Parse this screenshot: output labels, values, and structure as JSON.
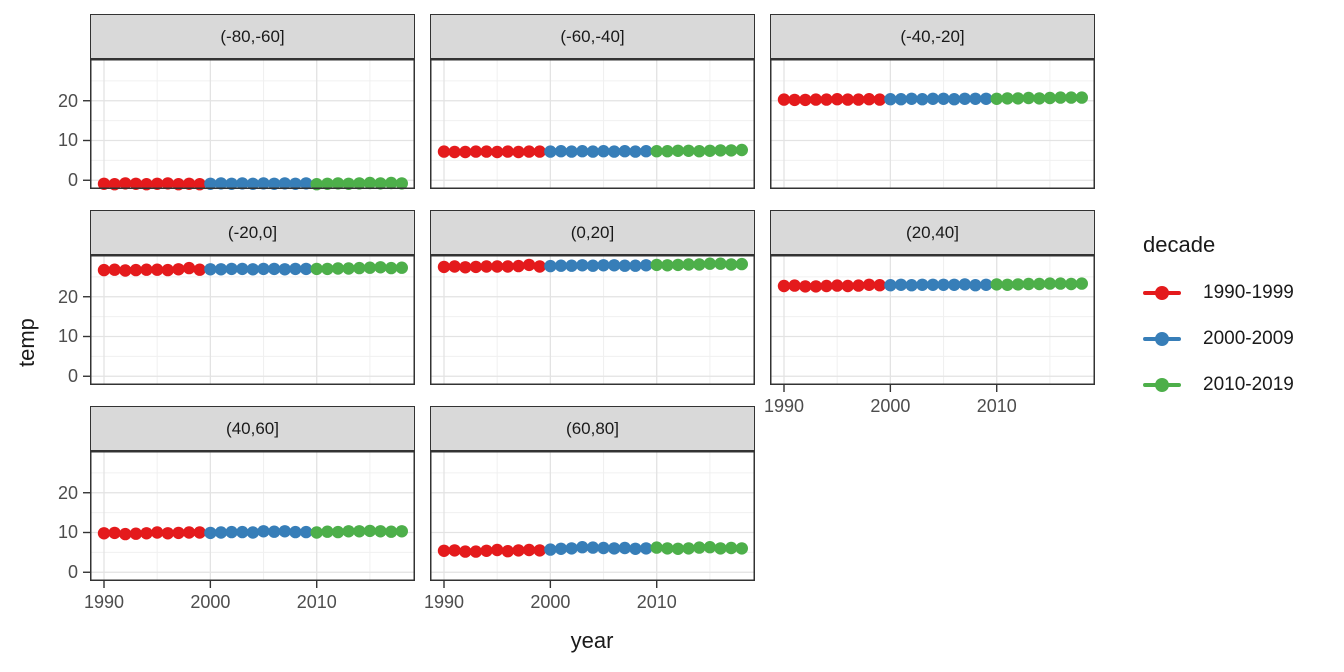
{
  "figure": {
    "xlabel": "year",
    "ylabel": "temp"
  },
  "legend": {
    "title": "decade",
    "entries": [
      {
        "label": "1990-1999",
        "color": "#E41A1C"
      },
      {
        "label": "2000-2009",
        "color": "#377EB8"
      },
      {
        "label": "2010-2019",
        "color": "#4DAF4A"
      }
    ]
  },
  "chart_data": {
    "type": "scatter",
    "title": "",
    "xlabel": "year",
    "ylabel": "temp",
    "facet_variable": "latitude band",
    "series_variable": "decade",
    "legend_position": "right",
    "grid": true,
    "x": [
      1990,
      1991,
      1992,
      1993,
      1994,
      1995,
      1996,
      1997,
      1998,
      1999,
      2000,
      2001,
      2002,
      2003,
      2004,
      2005,
      2006,
      2007,
      2008,
      2009,
      2010,
      2011,
      2012,
      2013,
      2014,
      2015,
      2016,
      2017,
      2018
    ],
    "x_ticks": [
      1990,
      2000,
      2010
    ],
    "y_ticks": [
      0,
      10,
      20
    ],
    "x_minor_ticks": [
      1995,
      2005,
      2015
    ],
    "y_minor_ticks": [
      5,
      15,
      25
    ],
    "xlim": [
      1988.7,
      2019.2
    ],
    "ylim": [
      -2.2,
      30.5
    ],
    "decades": [
      {
        "name": "1990-1999",
        "from": 1990,
        "to": 1999,
        "color": "#E41A1C"
      },
      {
        "name": "2000-2009",
        "from": 2000,
        "to": 2009,
        "color": "#377EB8"
      },
      {
        "name": "2010-2019",
        "from": 2010,
        "to": 2019,
        "color": "#4DAF4A"
      }
    ],
    "facets": [
      {
        "label": "(-80,-60]",
        "values": [
          -0.9,
          -1.0,
          -0.8,
          -0.9,
          -1.0,
          -0.9,
          -0.8,
          -1.0,
          -0.9,
          -1.0,
          -0.9,
          -0.8,
          -0.9,
          -0.8,
          -0.9,
          -0.8,
          -0.9,
          -0.8,
          -0.9,
          -0.8,
          -1.0,
          -0.9,
          -0.8,
          -0.9,
          -0.8,
          -0.7,
          -0.8,
          -0.7,
          -0.8
        ]
      },
      {
        "label": "(-60,-40]",
        "values": [
          7.2,
          7.1,
          7.1,
          7.2,
          7.2,
          7.1,
          7.2,
          7.1,
          7.2,
          7.2,
          7.2,
          7.3,
          7.2,
          7.3,
          7.2,
          7.3,
          7.2,
          7.3,
          7.2,
          7.3,
          7.3,
          7.3,
          7.4,
          7.4,
          7.3,
          7.4,
          7.5,
          7.5,
          7.6
        ]
      },
      {
        "label": "(-40,-20]",
        "values": [
          20.3,
          20.2,
          20.2,
          20.3,
          20.3,
          20.4,
          20.3,
          20.3,
          20.4,
          20.3,
          20.4,
          20.4,
          20.5,
          20.4,
          20.5,
          20.5,
          20.4,
          20.5,
          20.5,
          20.5,
          20.5,
          20.6,
          20.6,
          20.7,
          20.6,
          20.7,
          20.8,
          20.8,
          20.8
        ]
      },
      {
        "label": "(-20,0]",
        "values": [
          26.7,
          26.8,
          26.6,
          26.7,
          26.8,
          26.8,
          26.7,
          26.9,
          27.2,
          26.8,
          26.9,
          26.9,
          27.0,
          27.0,
          26.9,
          27.0,
          27.0,
          26.9,
          27.0,
          27.0,
          27.0,
          27.0,
          27.1,
          27.1,
          27.2,
          27.3,
          27.4,
          27.2,
          27.3
        ]
      },
      {
        "label": "(0,20]",
        "values": [
          27.5,
          27.6,
          27.4,
          27.5,
          27.6,
          27.6,
          27.6,
          27.7,
          28.0,
          27.6,
          27.7,
          27.8,
          27.8,
          27.9,
          27.8,
          27.9,
          27.9,
          27.8,
          27.8,
          27.9,
          28.0,
          27.9,
          28.0,
          28.1,
          28.1,
          28.3,
          28.3,
          28.1,
          28.2
        ]
      },
      {
        "label": "(20,40]",
        "values": [
          22.7,
          22.8,
          22.6,
          22.6,
          22.7,
          22.8,
          22.7,
          22.8,
          23.0,
          22.9,
          22.9,
          23.0,
          22.9,
          23.0,
          23.0,
          23.0,
          23.0,
          23.1,
          22.9,
          23.0,
          23.1,
          23.0,
          23.1,
          23.2,
          23.2,
          23.3,
          23.3,
          23.2,
          23.3
        ]
      },
      {
        "label": "(40,60]",
        "values": [
          9.8,
          9.9,
          9.6,
          9.7,
          9.8,
          10.0,
          9.8,
          9.9,
          10.0,
          10.0,
          9.9,
          10.0,
          10.1,
          10.1,
          10.0,
          10.3,
          10.2,
          10.3,
          10.1,
          10.1,
          10.0,
          10.2,
          10.1,
          10.3,
          10.3,
          10.4,
          10.3,
          10.2,
          10.3
        ]
      },
      {
        "label": "(60,80]",
        "values": [
          5.4,
          5.5,
          5.2,
          5.2,
          5.4,
          5.6,
          5.3,
          5.5,
          5.6,
          5.5,
          5.7,
          5.9,
          6.0,
          6.3,
          6.2,
          6.1,
          6.0,
          6.1,
          5.9,
          6.0,
          6.2,
          6.0,
          5.9,
          6.0,
          6.2,
          6.3,
          6.0,
          6.1,
          6.0
        ]
      }
    ],
    "style": {
      "panel_background": "#FFFFFF",
      "strip_background": "#D9D9D9",
      "panel_border": "#333333",
      "grid_major": "#E3E3E3",
      "grid_minor": "#F0F0F0",
      "tick_label_color": "#4D4D4D",
      "text_color": "#1A1A1A",
      "point_radius": 6.2
    }
  }
}
